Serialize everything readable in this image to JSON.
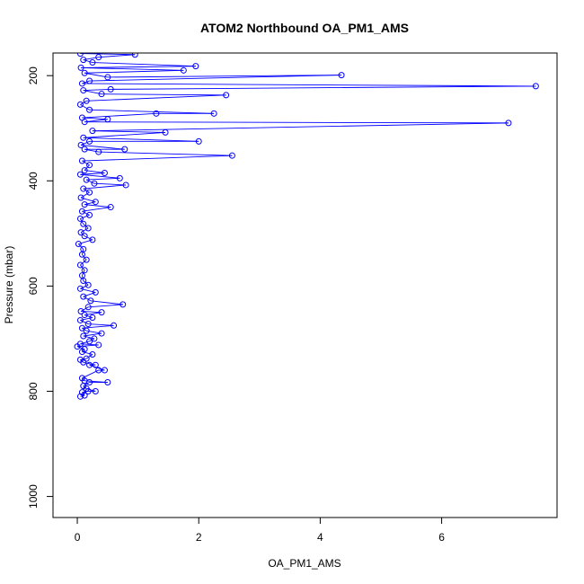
{
  "chart_data": {
    "type": "line",
    "title": "ATOM2 Northbound OA_PM1_AMS",
    "xlabel": "OA_PM1_AMS",
    "ylabel": "Pressure (mbar)",
    "xlim": [
      -0.4,
      7.9
    ],
    "ylim": [
      1040,
      157
    ],
    "y_reversed": true,
    "x_ticks": [
      0,
      2,
      4,
      6
    ],
    "y_ticks": [
      200,
      400,
      600,
      800,
      1000
    ],
    "grid": false,
    "legend": "none",
    "series_color": "#0000ff",
    "marker": "open-circle",
    "series": [
      {
        "values": [
          [
            0.05,
            810
          ],
          [
            0.12,
            808
          ],
          [
            0.08,
            802
          ],
          [
            0.18,
            800
          ],
          [
            0.3,
            800
          ],
          [
            0.15,
            795
          ],
          [
            0.1,
            790
          ],
          [
            0.2,
            783
          ],
          [
            0.5,
            783
          ],
          [
            0.12,
            780
          ],
          [
            0.08,
            775
          ],
          [
            0.35,
            760
          ],
          [
            0.45,
            760
          ],
          [
            0.2,
            750
          ],
          [
            0.3,
            750
          ],
          [
            0.1,
            745
          ],
          [
            0.05,
            740
          ],
          [
            0.15,
            738
          ],
          [
            0.25,
            730
          ],
          [
            0.08,
            725
          ],
          [
            0.12,
            720
          ],
          [
            0.0,
            715
          ],
          [
            0.35,
            712
          ],
          [
            0.05,
            710
          ],
          [
            0.2,
            705
          ],
          [
            0.28,
            700
          ],
          [
            0.1,
            695
          ],
          [
            0.4,
            690
          ],
          [
            0.15,
            685
          ],
          [
            0.08,
            680
          ],
          [
            0.6,
            675
          ],
          [
            0.18,
            672
          ],
          [
            0.05,
            665
          ],
          [
            0.25,
            660
          ],
          [
            0.12,
            655
          ],
          [
            0.4,
            650
          ],
          [
            0.06,
            648
          ],
          [
            0.18,
            640
          ],
          [
            0.75,
            635
          ],
          [
            0.22,
            628
          ],
          [
            0.1,
            620
          ],
          [
            0.3,
            612
          ],
          [
            0.05,
            605
          ],
          [
            0.18,
            598
          ],
          [
            0.1,
            590
          ],
          [
            0.08,
            580
          ],
          [
            0.12,
            570
          ],
          [
            0.05,
            560
          ],
          [
            0.15,
            550
          ],
          [
            0.08,
            540
          ],
          [
            0.1,
            530
          ],
          [
            0.02,
            520
          ],
          [
            0.25,
            512
          ],
          [
            0.12,
            505
          ],
          [
            0.06,
            498
          ],
          [
            0.18,
            490
          ],
          [
            0.1,
            482
          ],
          [
            0.05,
            472
          ],
          [
            0.2,
            465
          ],
          [
            0.08,
            458
          ],
          [
            0.55,
            450
          ],
          [
            0.12,
            445
          ],
          [
            0.3,
            440
          ],
          [
            0.06,
            432
          ],
          [
            0.2,
            422
          ],
          [
            0.1,
            415
          ],
          [
            0.8,
            408
          ],
          [
            0.28,
            405
          ],
          [
            0.15,
            398
          ],
          [
            0.7,
            395
          ],
          [
            0.05,
            388
          ],
          [
            0.45,
            385
          ],
          [
            0.12,
            380
          ],
          [
            0.2,
            370
          ],
          [
            0.08,
            362
          ],
          [
            2.55,
            352
          ],
          [
            0.35,
            345
          ],
          [
            0.12,
            340
          ],
          [
            0.78,
            340
          ],
          [
            0.06,
            332
          ],
          [
            0.2,
            325
          ],
          [
            2.0,
            325
          ],
          [
            0.1,
            318
          ],
          [
            1.45,
            308
          ],
          [
            0.25,
            305
          ],
          [
            7.1,
            290
          ],
          [
            0.12,
            288
          ],
          [
            0.5,
            283
          ],
          [
            0.08,
            280
          ],
          [
            1.3,
            272
          ],
          [
            2.25,
            272
          ],
          [
            0.2,
            265
          ],
          [
            0.05,
            255
          ],
          [
            0.15,
            248
          ],
          [
            2.45,
            237
          ],
          [
            0.4,
            235
          ],
          [
            0.1,
            228
          ],
          [
            0.55,
            226
          ],
          [
            7.55,
            220
          ],
          [
            0.08,
            215
          ],
          [
            0.2,
            210
          ],
          [
            4.35,
            199
          ],
          [
            0.5,
            203
          ],
          [
            0.12,
            195
          ],
          [
            1.75,
            190
          ],
          [
            0.06,
            185
          ],
          [
            1.95,
            182
          ],
          [
            0.25,
            175
          ],
          [
            0.1,
            170
          ],
          [
            0.35,
            165
          ],
          [
            0.95,
            160
          ],
          [
            0.05,
            158
          ]
        ]
      }
    ]
  }
}
